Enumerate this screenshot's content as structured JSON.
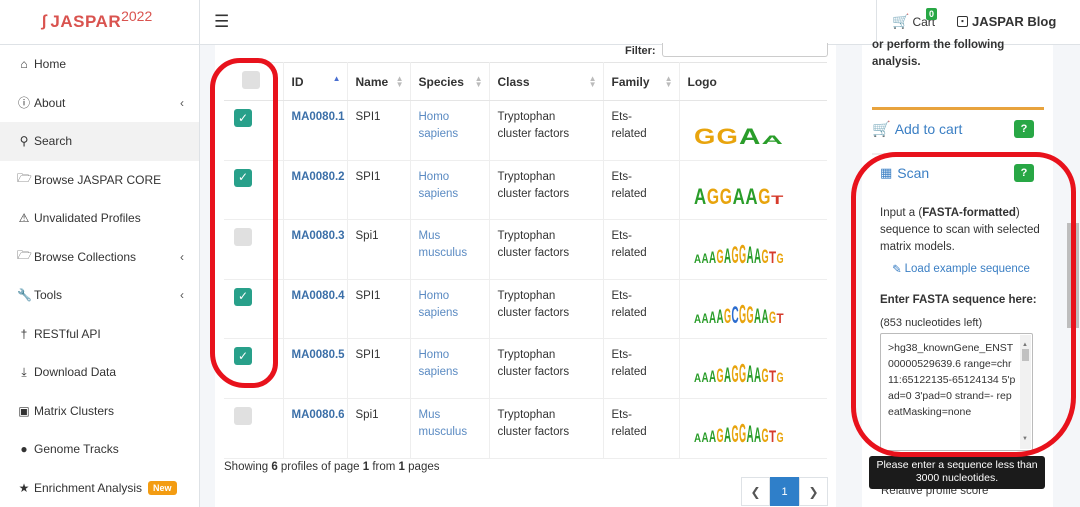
{
  "brand": {
    "name": "JASPAR",
    "year": "2022"
  },
  "topnav": {
    "cart_label": "Cart",
    "cart_count": "0",
    "blog_label": "JASPAR Blog"
  },
  "sidebar": {
    "items": [
      {
        "label": "Home",
        "icon": "home-icon"
      },
      {
        "label": "About",
        "icon": "info-icon",
        "chevron": true
      },
      {
        "label": "Search",
        "icon": "search-icon",
        "active": true
      },
      {
        "label": "Browse JASPAR CORE",
        "icon": "folder-open-icon"
      },
      {
        "label": "Unvalidated Profiles",
        "icon": "warning-icon"
      },
      {
        "label": "Browse Collections",
        "icon": "folder-open-icon",
        "chevron": true
      },
      {
        "label": "Tools",
        "icon": "wrench-icon",
        "chevron": true
      },
      {
        "label": "RESTful API",
        "icon": "plug-icon"
      },
      {
        "label": "Download Data",
        "icon": "download-icon"
      },
      {
        "label": "Matrix Clusters",
        "icon": "clusters-icon"
      },
      {
        "label": "Genome Tracks",
        "icon": "map-marker-icon"
      },
      {
        "label": "Enrichment Analysis",
        "icon": "star-icon",
        "badge": "New"
      }
    ]
  },
  "filter": {
    "label": "Filter:",
    "value": ""
  },
  "table": {
    "headers": {
      "id": "ID",
      "name": "Name",
      "species": "Species",
      "class": "Class",
      "family": "Family",
      "logo": "Logo"
    },
    "rows": [
      {
        "checked": true,
        "id": "MA0080.1",
        "name": "SPI1",
        "species1": "Homo",
        "species2": "sapiens",
        "class1": "Tryptophan",
        "class2": "cluster factors",
        "family1": "Ets-",
        "family2": "related",
        "logo": "GGAA"
      },
      {
        "checked": true,
        "id": "MA0080.2",
        "name": "SPI1",
        "species1": "Homo",
        "species2": "sapiens",
        "class1": "Tryptophan",
        "class2": "cluster factors",
        "family1": "Ets-",
        "family2": "related",
        "logo": "AGGAAGT"
      },
      {
        "checked": false,
        "id": "MA0080.3",
        "name": "Spi1",
        "species1": "Mus",
        "species2": "musculus",
        "class1": "Tryptophan",
        "class2": "cluster factors",
        "family1": "Ets-",
        "family2": "related",
        "logo": "AAAGAGGAAGTG"
      },
      {
        "checked": true,
        "id": "MA0080.4",
        "name": "SPI1",
        "species1": "Homo",
        "species2": "sapiens",
        "class1": "Tryptophan",
        "class2": "cluster factors",
        "family1": "Ets-",
        "family2": "related",
        "logo": "AAAAGCGGAAGT"
      },
      {
        "checked": true,
        "id": "MA0080.5",
        "name": "SPI1",
        "species1": "Homo",
        "species2": "sapiens",
        "class1": "Tryptophan",
        "class2": "cluster factors",
        "family1": "Ets-",
        "family2": "related",
        "logo": "AAAGAGGAAGTG"
      },
      {
        "checked": false,
        "id": "MA0080.6",
        "name": "Spi1",
        "species1": "Mus",
        "species2": "musculus",
        "class1": "Tryptophan",
        "class2": "cluster factors",
        "family1": "Ets-",
        "family2": "related",
        "logo": "AAAGAGGAAGTG"
      }
    ]
  },
  "footer": {
    "showing_pre": "Showing ",
    "profiles": "6",
    "mid1": " profiles of page ",
    "page": "1",
    "mid2": " from ",
    "pages": "1",
    "post": " pages",
    "current_page": "1"
  },
  "right": {
    "intro": "or perform the following analysis.",
    "add_to_cart": "Add to cart",
    "scan_title": "Scan",
    "scan_desc_pre": "Input a (",
    "scan_desc_bold": "FASTA-formatted",
    "scan_desc_post": ") sequence to scan with selected matrix models.",
    "load_example": "Load example sequence",
    "enter_label": "Enter FASTA sequence here:",
    "remaining": "(853 nucleotides left)",
    "fasta_value": ">hg38_knownGene_ENST00000529639.6 range=chr11:65122135-65124134 5'pad=0 3'pad=0 strand=- repeatMasking=none",
    "tooltip": "Please enter a sequence less than 3000 nucleotides.",
    "relative_label": "Relative profile score",
    "help": "?"
  },
  "colors": {
    "brand": "#d9534f",
    "check": "#28a08a",
    "link": "#3b6fa8",
    "annotation": "#e8121c",
    "cart_border": "#e8a33d"
  }
}
